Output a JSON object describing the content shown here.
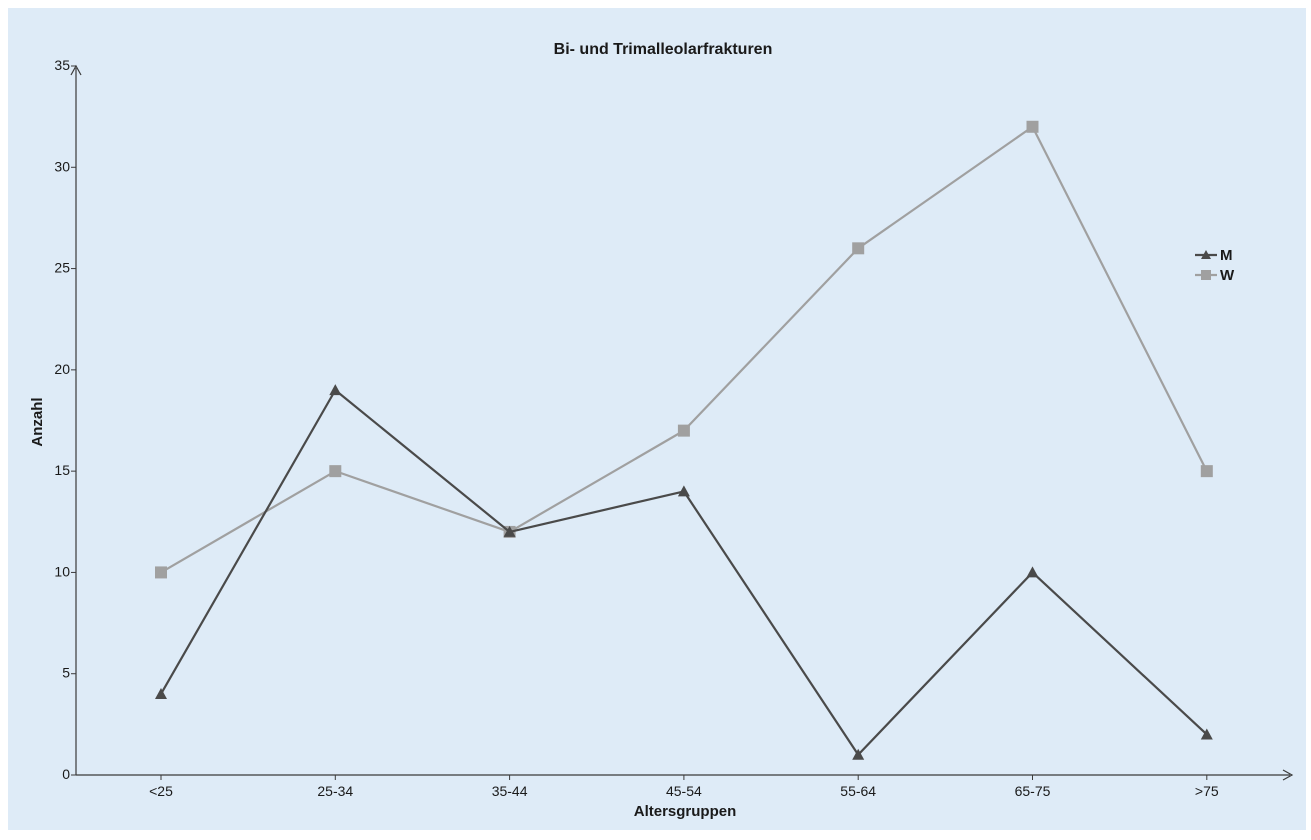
{
  "chart_data": {
    "type": "line",
    "title": "Bi- und Trimalleolarfrakturen",
    "xlabel": "Altersgruppen",
    "ylabel": "Anzahl",
    "categories": [
      "<25",
      "25-34",
      "35-44",
      "45-54",
      "55-64",
      "65-75",
      ">75"
    ],
    "ylim": [
      0,
      35
    ],
    "yticks": [
      0,
      5,
      10,
      15,
      20,
      25,
      30,
      35
    ],
    "grid": false,
    "legend_position": "right",
    "series": [
      {
        "name": "M",
        "marker": "triangle",
        "color": "#4a4a4a",
        "values": [
          4,
          19,
          12,
          14,
          1,
          10,
          2
        ]
      },
      {
        "name": "W",
        "marker": "square",
        "color": "#a0a0a0",
        "values": [
          10,
          15,
          12,
          17,
          26,
          32,
          15
        ]
      }
    ],
    "background": "#deebf7"
  }
}
